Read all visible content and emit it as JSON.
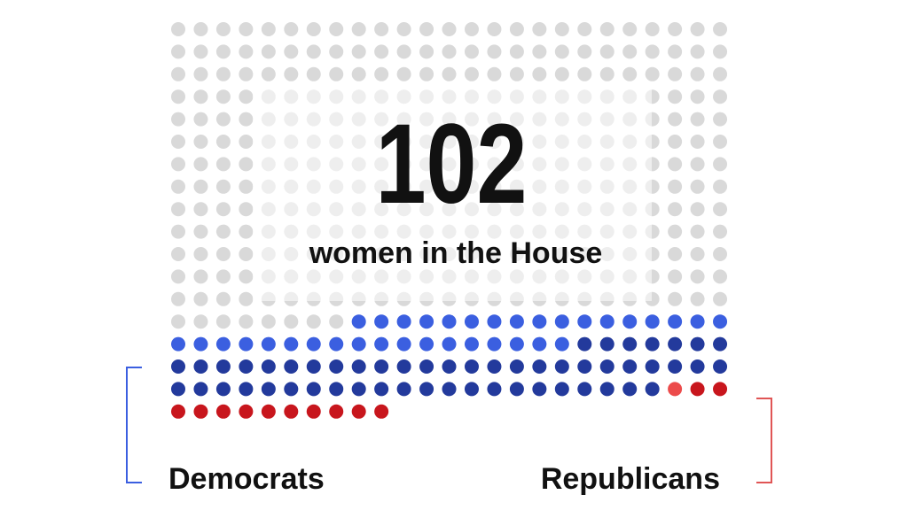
{
  "chart_data": {
    "type": "waffle",
    "total": 102,
    "total_label": "women in the House",
    "seats": 435,
    "columns": 25,
    "empty_color": "#d9d9d9",
    "series": [
      {
        "name": "Democrats",
        "colors": [
          "#3b5fe0",
          "#233a9c"
        ],
        "values": [
          35,
          54
        ]
      },
      {
        "name": "Republicans",
        "colors": [
          "#ec4b4b",
          "#c8161d"
        ],
        "values": [
          1,
          12
        ]
      }
    ]
  }
}
